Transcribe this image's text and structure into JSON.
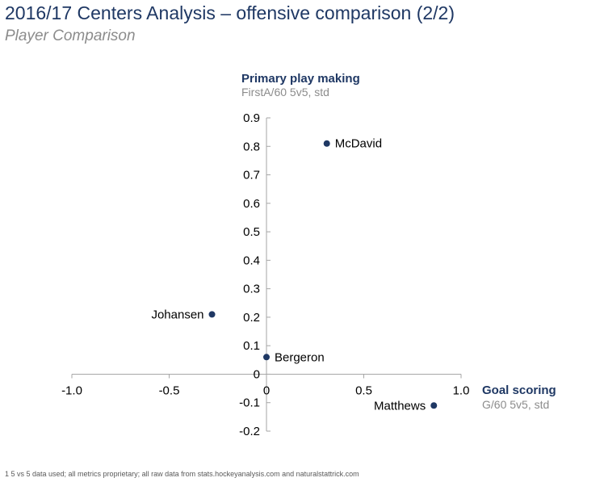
{
  "title": "2016/17 Centers Analysis – offensive comparison (2/2)",
  "subtitle": "Player Comparison",
  "footnote": "1 5 vs 5 data used; all metrics proprietary; all raw data from stats.hockeyanalysis.com and naturalstattrick.com",
  "colors": {
    "title": "#1f3864",
    "point": "#1f3864",
    "axis": "#a6a6a6",
    "subtitle": "#8c8c8c"
  },
  "chart_data": {
    "type": "scatter",
    "x_axis": {
      "title": "Goal scoring",
      "subtitle": "G/60 5v5, std",
      "range": [
        -1.0,
        1.0
      ],
      "ticks": [
        -1.0,
        -0.5,
        0,
        0.5,
        1.0
      ],
      "tick_labels": [
        "-1.0",
        "-0.5",
        "0",
        "0.5",
        "1.0"
      ]
    },
    "y_axis": {
      "title": "Primary play making",
      "subtitle": "FirstA/60 5v5, std",
      "range": [
        -0.2,
        0.9
      ],
      "ticks": [
        -0.2,
        -0.1,
        0,
        0.1,
        0.2,
        0.3,
        0.4,
        0.5,
        0.6,
        0.7,
        0.8,
        0.9
      ],
      "tick_labels": [
        "-0.2",
        "-0.1",
        "0",
        "0.1",
        "0.2",
        "0.3",
        "0.4",
        "0.5",
        "0.6",
        "0.7",
        "0.8",
        "0.9"
      ]
    },
    "points": [
      {
        "name": "McDavid",
        "x": 0.31,
        "y": 0.81,
        "label_side": "right"
      },
      {
        "name": "Johansen",
        "x": -0.28,
        "y": 0.21,
        "label_side": "left"
      },
      {
        "name": "Bergeron",
        "x": 0.0,
        "y": 0.06,
        "label_side": "right"
      },
      {
        "name": "Matthews",
        "x": 0.86,
        "y": -0.11,
        "label_side": "left"
      }
    ]
  }
}
